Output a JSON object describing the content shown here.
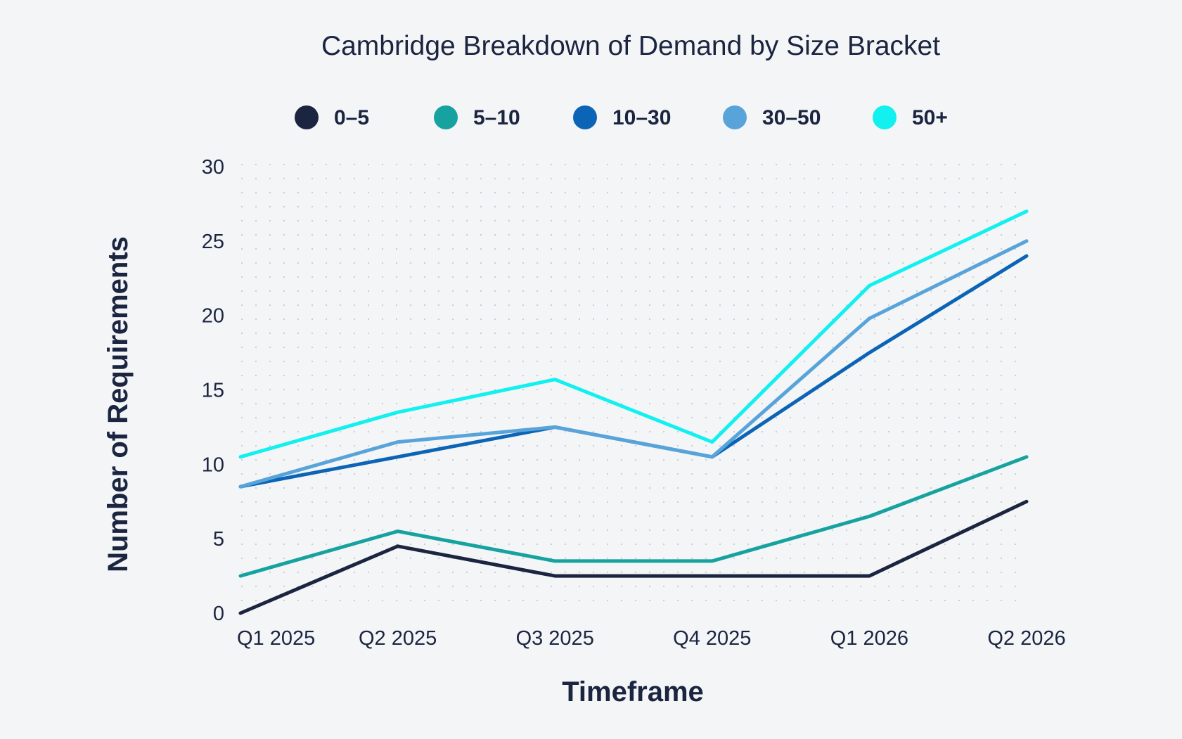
{
  "chart_data": {
    "type": "line",
    "title": "Cambridge Breakdown of Demand by Size Bracket",
    "xlabel": "Timeframe",
    "ylabel": "Number of Requirements",
    "categories": [
      "Q1 2025",
      "Q2 2025",
      "Q3 2025",
      "Q4 2025",
      "Q1 2026",
      "Q2 2026"
    ],
    "ylim": [
      0,
      30
    ],
    "yticks": [
      0,
      5,
      10,
      15,
      20,
      25,
      30
    ],
    "grid": "dotted",
    "legend": "top-center",
    "series": [
      {
        "name": "0–5",
        "color": "#1b2540",
        "values": [
          0,
          4.5,
          2.5,
          2.5,
          2.5,
          7.5
        ]
      },
      {
        "name": "5–10",
        "color": "#16a29f",
        "values": [
          2.5,
          5.5,
          3.5,
          3.5,
          6.5,
          10.5
        ]
      },
      {
        "name": "10–30",
        "color": "#0b64b5",
        "values": [
          8.5,
          10.5,
          12.5,
          10.5,
          17.5,
          24
        ]
      },
      {
        "name": "30–50",
        "color": "#58a4da",
        "values": [
          8.5,
          11.5,
          12.5,
          10.5,
          19.8,
          25
        ]
      },
      {
        "name": "50+",
        "color": "#12f0f0",
        "values": [
          10.5,
          13.5,
          15.7,
          11.5,
          22,
          27
        ]
      }
    ]
  }
}
